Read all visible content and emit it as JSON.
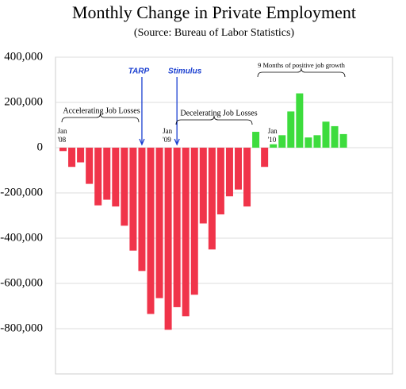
{
  "chart_data": {
    "type": "bar",
    "title": "Monthly Change in Private Employment",
    "subtitle": "(Source:  Bureau of Labor Statistics)",
    "categories": [
      "Jan '08",
      null,
      null,
      null,
      null,
      null,
      null,
      null,
      null,
      null,
      null,
      null,
      "Jan '09",
      null,
      null,
      null,
      null,
      null,
      null,
      null,
      null,
      null,
      null,
      null,
      "Jan '10",
      null,
      null,
      null,
      null,
      null,
      null,
      null,
      null
    ],
    "values": [
      -15000,
      -85000,
      -65000,
      -160000,
      -255000,
      -230000,
      -260000,
      -345000,
      -455000,
      -545000,
      -735000,
      -665000,
      -805000,
      -705000,
      -745000,
      -650000,
      -335000,
      -450000,
      -295000,
      -215000,
      -185000,
      -260000,
      70000,
      -85000,
      15000,
      55000,
      160000,
      240000,
      45000,
      55000,
      115000,
      95000,
      60000
    ],
    "negative_color": "#f0344a",
    "positive_color": "#3ddc3d",
    "ylim": [
      -1000000,
      400000
    ],
    "yticks": [
      {
        "value": 400000,
        "label": "400,000"
      },
      {
        "value": 200000,
        "label": "200,000"
      },
      0,
      {
        "value": -200000,
        "label": "-200,000"
      },
      {
        "value": -400000,
        "label": "-400,000"
      },
      {
        "value": -600000,
        "label": "-600,000"
      },
      {
        "value": -800000,
        "label": "-800,000"
      }
    ],
    "grid": true,
    "annotations": [
      "TARP",
      "Stimulus",
      "Accelerating Job Losses",
      "Decelerating Job Losses",
      "9 Months of positive job growth"
    ]
  }
}
